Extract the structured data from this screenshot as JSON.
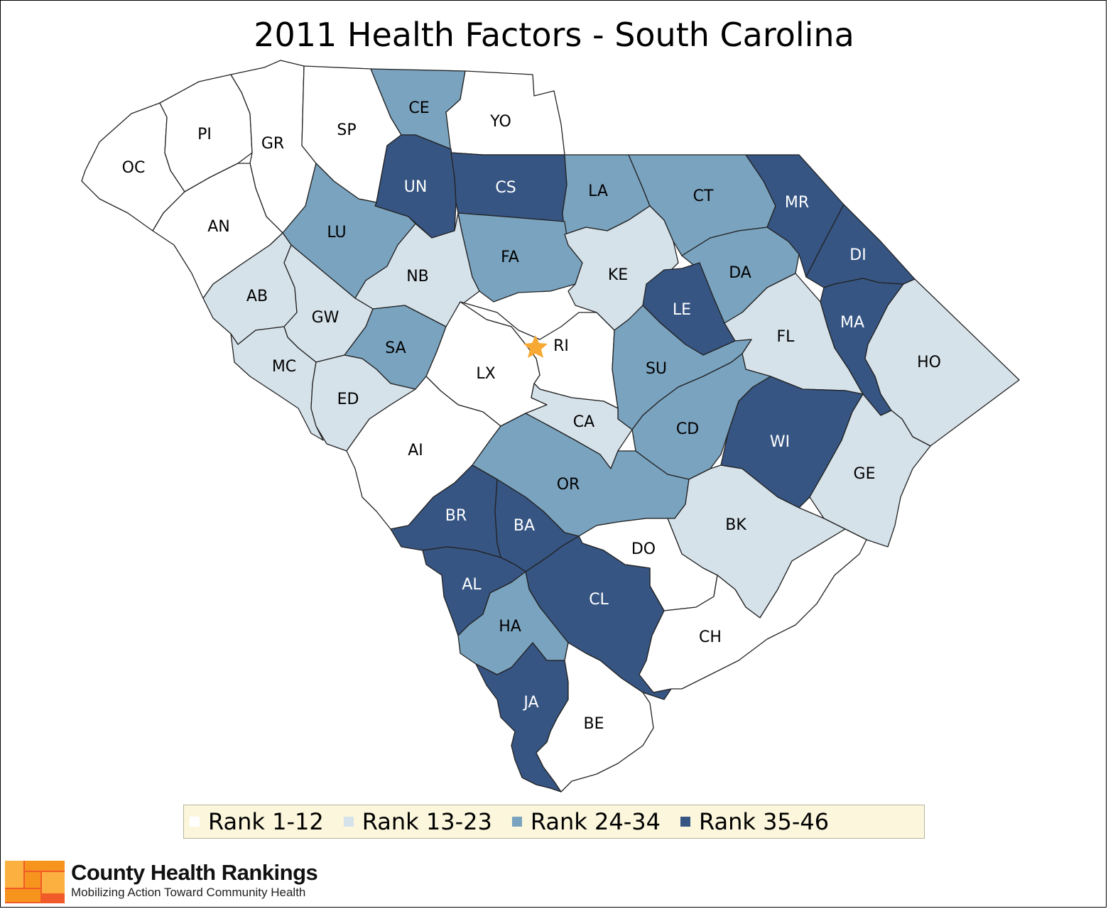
{
  "title": "2011 Health Factors - South Carolina",
  "colors": {
    "rank_1_12": "#ffffff",
    "rank_13_23": "#d6e2ea",
    "rank_24_34": "#7aa3bf",
    "rank_35_46": "#365583",
    "capital_star": "#f7a934"
  },
  "legend": [
    {
      "label": "Rank 1-12",
      "color": "#ffffff"
    },
    {
      "label": "Rank 13-23",
      "color": "#d6e2ea"
    },
    {
      "label": "Rank 24-34",
      "color": "#7aa3bf"
    },
    {
      "label": "Rank 35-46",
      "color": "#365583"
    }
  ],
  "counties": [
    {
      "code": "OC",
      "tier": 1
    },
    {
      "code": "PI",
      "tier": 1
    },
    {
      "code": "GR",
      "tier": 1
    },
    {
      "code": "SP",
      "tier": 1
    },
    {
      "code": "CE",
      "tier": 3
    },
    {
      "code": "YO",
      "tier": 1
    },
    {
      "code": "AN",
      "tier": 1
    },
    {
      "code": "UN",
      "tier": 4
    },
    {
      "code": "CS",
      "tier": 4
    },
    {
      "code": "LA",
      "tier": 3
    },
    {
      "code": "CT",
      "tier": 3
    },
    {
      "code": "MR",
      "tier": 4
    },
    {
      "code": "LU",
      "tier": 3
    },
    {
      "code": "NB",
      "tier": 2
    },
    {
      "code": "FA",
      "tier": 3
    },
    {
      "code": "KE",
      "tier": 2
    },
    {
      "code": "DA",
      "tier": 3
    },
    {
      "code": "DI",
      "tier": 4
    },
    {
      "code": "AB",
      "tier": 2
    },
    {
      "code": "GW",
      "tier": 2
    },
    {
      "code": "LE",
      "tier": 4
    },
    {
      "code": "MA",
      "tier": 4
    },
    {
      "code": "FL",
      "tier": 2
    },
    {
      "code": "RI",
      "tier": 1
    },
    {
      "code": "SA",
      "tier": 3
    },
    {
      "code": "LX",
      "tier": 1
    },
    {
      "code": "SU",
      "tier": 3
    },
    {
      "code": "HO",
      "tier": 2
    },
    {
      "code": "MC",
      "tier": 2
    },
    {
      "code": "ED",
      "tier": 2
    },
    {
      "code": "CA",
      "tier": 2
    },
    {
      "code": "CD",
      "tier": 3
    },
    {
      "code": "WI",
      "tier": 4
    },
    {
      "code": "AI",
      "tier": 1
    },
    {
      "code": "GE",
      "tier": 2
    },
    {
      "code": "OR",
      "tier": 3
    },
    {
      "code": "BR",
      "tier": 4
    },
    {
      "code": "BA",
      "tier": 4
    },
    {
      "code": "BK",
      "tier": 2
    },
    {
      "code": "DO",
      "tier": 1
    },
    {
      "code": "AL",
      "tier": 4
    },
    {
      "code": "CL",
      "tier": 4
    },
    {
      "code": "HA",
      "tier": 3
    },
    {
      "code": "CH",
      "tier": 1
    },
    {
      "code": "JA",
      "tier": 4
    },
    {
      "code": "BE",
      "tier": 1
    }
  ],
  "capital": {
    "county": "RI",
    "icon": "star-icon"
  },
  "brand": {
    "name": "County Health Rankings",
    "tagline": "Mobilizing Action Toward Community Health",
    "logo_colors": [
      "#f7941d",
      "#f15a29",
      "#fbb040"
    ]
  }
}
